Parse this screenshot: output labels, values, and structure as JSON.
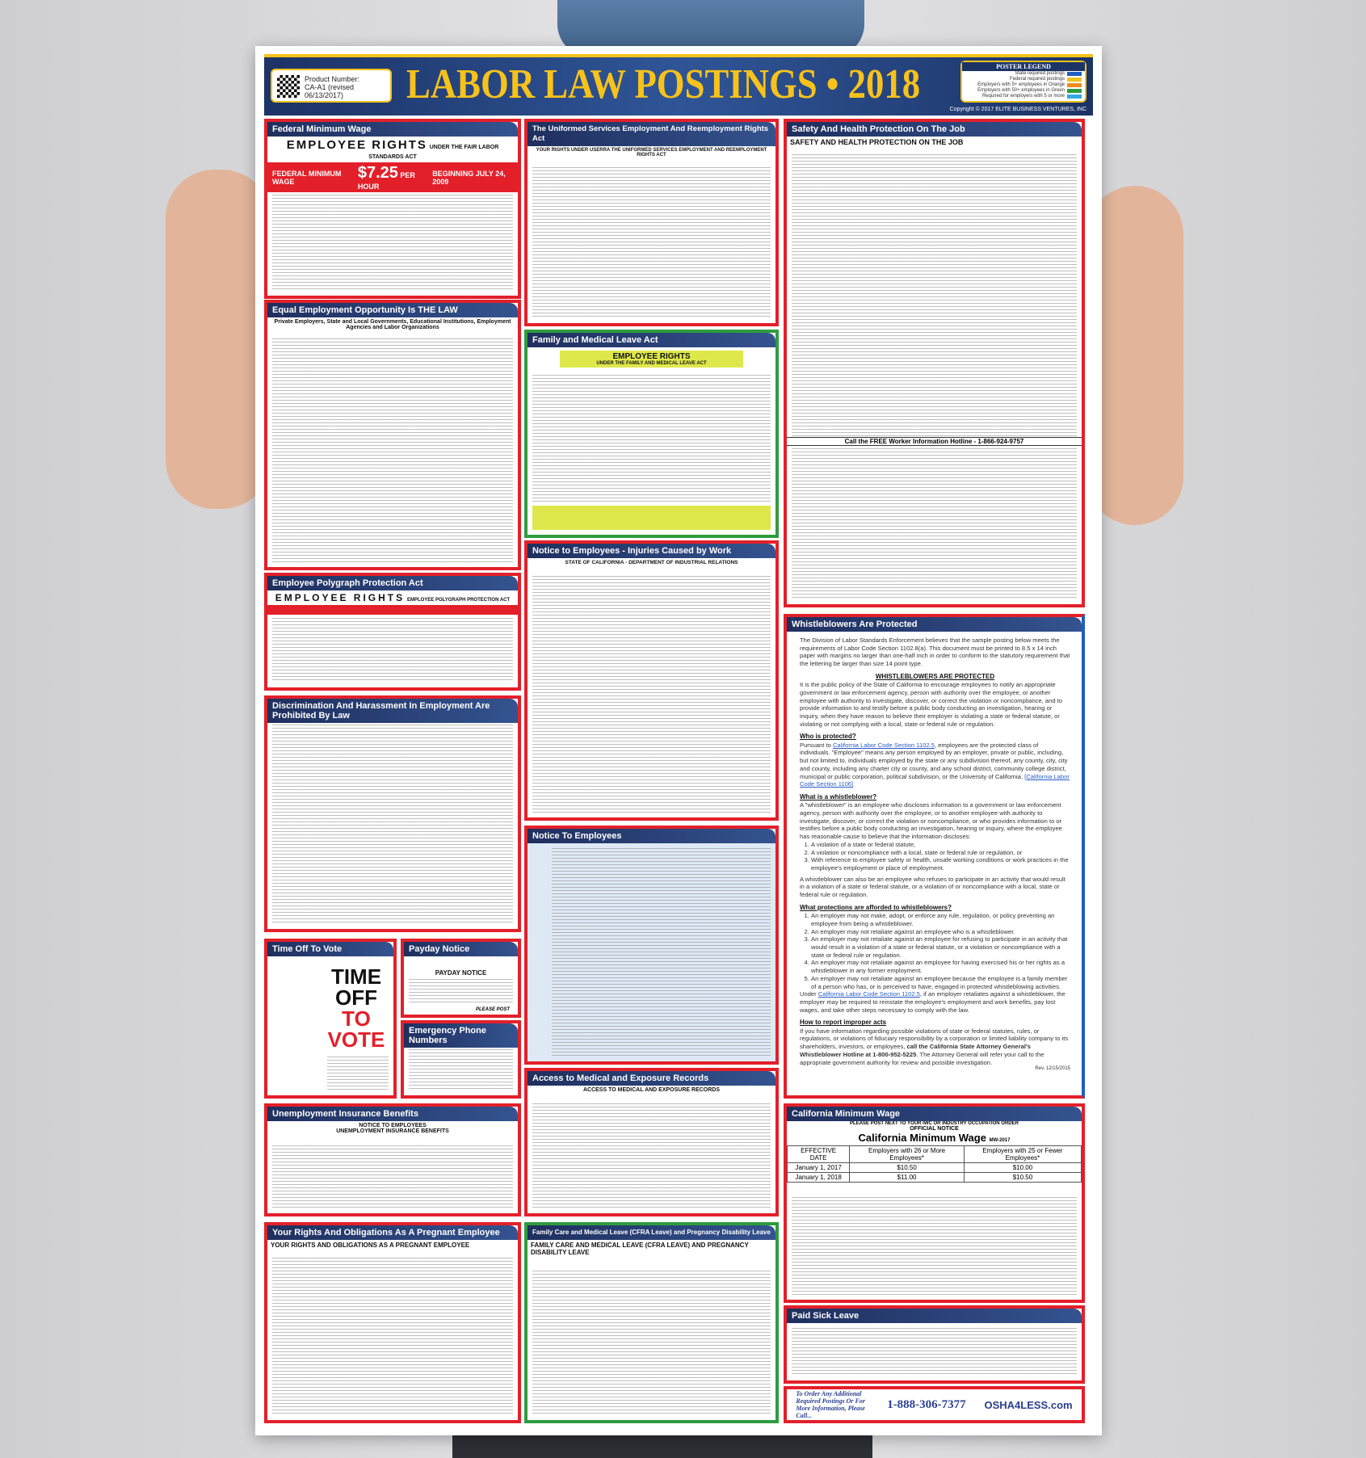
{
  "header": {
    "product_label": "Product Number:",
    "product_number": "CA-A1 (revised 06/13/2017)",
    "title": "LABOR LAW POSTINGS • 2018",
    "legend_title": "POSTER LEGEND",
    "legend": [
      {
        "label": "State required postings",
        "color": "#1f5fbf"
      },
      {
        "label": "Federal required postings",
        "color": "#f3c21b"
      },
      {
        "label": "Employers with 5+ employees in Orange",
        "color": "#f08a1c"
      },
      {
        "label": "Employers with 50+ employees in Green",
        "color": "#2e9c3e"
      },
      {
        "label": "Required for employers with 5 or more",
        "color": "#35a9e0"
      }
    ],
    "copyright": "Copyright © 2017 ELITE BUSINESS VENTURES, INC"
  },
  "panels": {
    "federal_min_wage": {
      "title": "Federal Minimum Wage",
      "sub": "EMPLOYEE RIGHTS",
      "sub2": "UNDER THE FAIR LABOR STANDARDS ACT",
      "bar_left": "FEDERAL MINIMUM WAGE",
      "rate": "$7.25",
      "per": "PER HOUR",
      "beginning": "BEGINNING JULY 24, 2009"
    },
    "eeo": {
      "title": "Equal Employment Opportunity Is THE LAW",
      "sub": "Private Employers, State and Local Governments, Educational Institutions, Employment Agencies and Labor Organizations"
    },
    "polygraph": {
      "title": "Employee Polygraph Protection Act",
      "sub": "EMPLOYEE RIGHTS",
      "sub2": "EMPLOYEE POLYGRAPH PROTECTION ACT"
    },
    "discrimination": {
      "title": "Discrimination And Harassment In Employment Are Prohibited By Law"
    },
    "vote": {
      "title": "Time Off To Vote",
      "line1": "TIME OFF",
      "line2": "TO VOTE"
    },
    "payday": {
      "title": "Payday Notice",
      "sub": "PAYDAY NOTICE",
      "post": "PLEASE POST"
    },
    "emergency": {
      "title": "Emergency Phone Numbers"
    },
    "unemployment": {
      "title": "Unemployment Insurance Benefits",
      "sub": "NOTICE TO EMPLOYEES",
      "sub2": "UNEMPLOYMENT INSURANCE BENEFITS"
    },
    "pregnant": {
      "title": "Your Rights And Obligations As A Pregnant Employee",
      "sub": "YOUR RIGHTS AND OBLIGATIONS AS A PREGNANT EMPLOYEE"
    },
    "userra": {
      "title": "The Uniformed Services Employment And Reemployment Rights Act",
      "sub": "YOUR RIGHTS UNDER USERRA THE UNIFORMED SERVICES EMPLOYMENT AND REEMPLOYMENT RIGHTS ACT"
    },
    "fmla": {
      "title": "Family and Medical Leave Act",
      "sub": "EMPLOYEE RIGHTS",
      "sub2": "UNDER THE FAMILY AND MEDICAL LEAVE ACT"
    },
    "injuries": {
      "title": "Notice to Employees - Injuries Caused by Work",
      "sub": "STATE OF CALIFORNIA - DEPARTMENT OF INDUSTRIAL RELATIONS"
    },
    "edd": {
      "title": "Notice To Employees"
    },
    "medical_records": {
      "title": "Access to Medical and Exposure Records",
      "sub": "ACCESS TO MEDICAL AND EXPOSURE RECORDS"
    },
    "cfra": {
      "title": "Family Care and Medical Leave (CFRA Leave) and Pregnancy Disability Leave",
      "sub": "FAMILY CARE AND MEDICAL LEAVE (CFRA LEAVE) AND PREGNANCY DISABILITY LEAVE"
    },
    "safety": {
      "title": "Safety And Health Protection On The Job",
      "sub": "SAFETY AND HEALTH PROTECTION ON THE JOB",
      "hotline": "Call the FREE Worker Information Hotline - 1-866-924-9757"
    },
    "whistle": {
      "title": "Whistleblowers Are Protected",
      "intro": "The Division of Labor Standards Enforcement believes that the sample posting below meets the requirements of Labor Code Section 1102.8(a). This document must be printed to 8.5 x 14 inch paper with margins no larger than one-half inch in order to conform to the statutory requirement that the lettering be larger than size 14 point type.",
      "heading": "WHISTLEBLOWERS ARE PROTECTED",
      "policy": "It is the public policy of the State of California to encourage employees to notify an appropriate government or law enforcement agency, person with authority over the employee, or another employee with authority to investigate, discover, or correct the violation or noncompliance, and to provide information to and testify before a public body conducting an investigation, hearing or inquiry, when they have reason to believe their employer is violating a state or federal statute, or violating or not complying with a local, state or federal rule or regulation.",
      "who_h": "Who is protected?",
      "who_pre": "Pursuant to ",
      "who_link": "California Labor Code Section 1102.5",
      "who_text": ", employees are the protected class of individuals. \"Employee\" means any person employed by an employer, private or public, including, but not limited to, individuals employed by the state or any subdivision thereof, any county, city, city and county, including any charter city or county, and any school district, community college district, municipal or public corporation, political subdivision, or the University of California. ",
      "who_link2": "[California Labor Code Section 1106]",
      "what_h": "What is a whistleblower?",
      "what_text": "A \"whistleblower\" is an employee who discloses information to a government or law enforcement agency, person with authority over the employee, or to another employee with authority to investigate, discover, or correct the violation or noncompliance, or who provides information to or testifies before a public body conducting an investigation, hearing or inquiry, where the employee has reasonable cause to believe that the information discloses:",
      "what_list": [
        "A violation of a state or federal statute,",
        "A violation or noncompliance with a local, state or federal rule or regulation, or",
        "With reference to employee safety or health, unsafe working conditions or work practices in the employee's employment or place of employment."
      ],
      "also": "A whistleblower can also be an employee who refuses to participate in an activity that would result in a violation of a state or federal statute, or a violation of or noncompliance with a local, state or federal rule or regulation.",
      "prot_h": "What protections are afforded to whistleblowers?",
      "prot_list": [
        "An employer may not make, adopt, or enforce any rule, regulation, or policy preventing an employee from being a whistleblower.",
        "An employer may not retaliate against an employee who is a whistleblower.",
        "An employer may not retaliate against an employee for refusing to participate in an activity that would result in a violation of a state or federal statute, or a violation or noncompliance with a state or federal rule or regulation.",
        "An employer may not retaliate against an employee for having exercised his or her rights as a whistleblower in any former employment.",
        "An employer may not retaliate against an employee because the employee is a family member of a person who has, or is perceived to have, engaged in protected whistleblowing activities."
      ],
      "under_pre": "Under ",
      "under_link": "California Labor Code Section 1102.5",
      "under_text": ", if an employer retaliates against a whistleblower, the employer may be required to reinstate the employee's employment and work benefits, pay lost wages, and take other steps necessary to comply with the law.",
      "report_h": "How to report improper acts",
      "report_text": "If you have information regarding possible violations of state or federal statutes, rules, or regulations, or violations of fiduciary responsibility by a corporation or limited liability company to its shareholders, investors, or employees, ",
      "report_bold": "call the California State Attorney General's Whistleblower Hotline at 1-800-952-5225",
      "report_end": ". The Attorney General will refer your call to the appropriate government authority for review and possible investigation.",
      "rev": "Rev. 12/15/2015"
    },
    "ca_min_wage": {
      "title": "California Minimum Wage",
      "post_next": "PLEASE POST NEXT TO YOUR IWC OR INDUSTRY OCCUPATION ORDER",
      "official": "OFFICIAL NOTICE",
      "name": "California Minimum Wage",
      "code": "MW-2017",
      "table_headers": [
        "EFFECTIVE DATE",
        "Employers with 26 or More Employees*",
        "Employers with 25 or Fewer Employees*"
      ],
      "rows": [
        [
          "January 1, 2017",
          "$10.50",
          "$10.00"
        ],
        [
          "January 1, 2018",
          "$11.00",
          "$10.50"
        ]
      ]
    },
    "paid_sick": {
      "title": "Paid Sick Leave"
    },
    "order": {
      "text": "To Order Any Additional Required Postings Or For More Information, Please Call...",
      "phone": "1-888-306-7377",
      "logo": "OSHA4LESS.com"
    }
  }
}
